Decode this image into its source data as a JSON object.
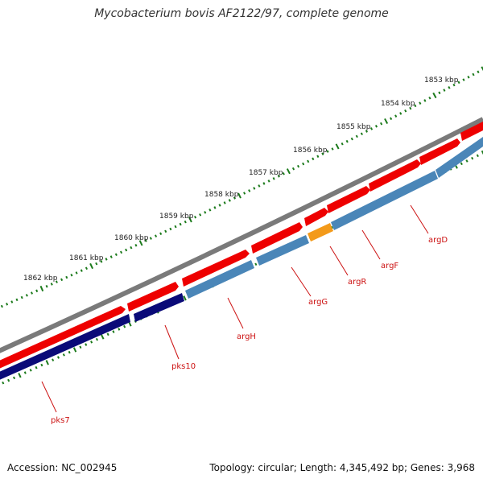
{
  "map": {
    "title": "Mycobacterium bovis AF2122/97, complete genome",
    "accession_text": "Accession: NC_002945",
    "summary_text": "Topology: circular; Length: 4,345,492 bp; Genes: 3,968",
    "colors": {
      "backbone": "#7a7a7a",
      "forward_gene": "#ee0000",
      "reverse_gene": "#4a86b8",
      "reverse_gene_dark": "#0a0a78",
      "highlight_gene": "#f39a1a",
      "tick": "#1b7a1b",
      "gene_label": "#cc1111"
    },
    "scale_labels": [
      "1853 kbp",
      "1854 kbp",
      "1855 kbp",
      "1856 kbp",
      "1857 kbp",
      "1858 kbp",
      "1859 kbp",
      "1860 kbp",
      "1861 kbp",
      "1862 kbp"
    ],
    "gene_labels": [
      "argD",
      "argF",
      "argR",
      "argG",
      "argH",
      "pks10",
      "pks7"
    ]
  }
}
